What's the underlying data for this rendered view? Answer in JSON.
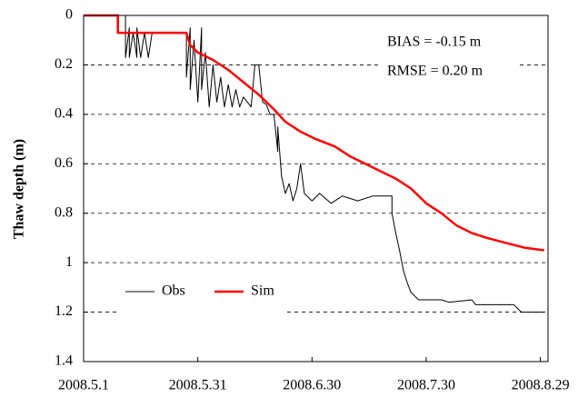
{
  "chart_data": {
    "type": "line",
    "y_label": "Thaw depth (m)",
    "y_inverted": true,
    "grid": true,
    "legend": "lower left",
    "annotations": [
      "BIAS = -0.15 m",
      "RMSE = 0.20 m"
    ],
    "xlim": [
      "2008-05-01",
      "2008-08-31"
    ],
    "xticks": [
      {
        "value": "2008-05-01",
        "label": "2008.5.1"
      },
      {
        "value": "2008-05-31",
        "label": "2008.5.31"
      },
      {
        "value": "2008-06-30",
        "label": "2008.6.30"
      },
      {
        "value": "2008-07-30",
        "label": "2008.7.30"
      },
      {
        "value": "2008-08-29",
        "label": "2008.8.29"
      }
    ],
    "ylim": [
      0,
      1.4
    ],
    "yticks": [
      0,
      0.2,
      0.4,
      0.6,
      0.8,
      1,
      1.2,
      1.4
    ],
    "series": [
      {
        "name": "Obs",
        "color": "#000000",
        "x": [
          "2008-05-01",
          "2008-05-12",
          "2008-05-12",
          "2008-05-13",
          "2008-05-13",
          "2008-05-14",
          "2008-05-15",
          "2008-05-15",
          "2008-05-16",
          "2008-05-17",
          "2008-05-18",
          "2008-05-19",
          "2008-05-28",
          "2008-05-28",
          "2008-05-29",
          "2008-05-29",
          "2008-05-30",
          "2008-05-31",
          "2008-06-01",
          "2008-06-01",
          "2008-06-02",
          "2008-06-03",
          "2008-06-04",
          "2008-06-05",
          "2008-06-06",
          "2008-06-07",
          "2008-06-08",
          "2008-06-09",
          "2008-06-10",
          "2008-06-11",
          "2008-06-12",
          "2008-06-14",
          "2008-06-15",
          "2008-06-16",
          "2008-06-17",
          "2008-06-18",
          "2008-06-19",
          "2008-06-20",
          "2008-06-21",
          "2008-06-21",
          "2008-06-22",
          "2008-06-23",
          "2008-06-24",
          "2008-06-25",
          "2008-06-26",
          "2008-06-27",
          "2008-06-28",
          "2008-06-30",
          "2008-07-02",
          "2008-07-05",
          "2008-07-08",
          "2008-07-12",
          "2008-07-16",
          "2008-07-21",
          "2008-07-21",
          "2008-07-22",
          "2008-07-23",
          "2008-07-24",
          "2008-07-25",
          "2008-07-26",
          "2008-07-28",
          "2008-08-03",
          "2008-08-05",
          "2008-08-11",
          "2008-08-12",
          "2008-08-22",
          "2008-08-24",
          "2008-08-30"
        ],
        "values": [
          0,
          0,
          0.17,
          0.05,
          0.17,
          0.07,
          0.17,
          0.05,
          0.17,
          0.07,
          0.17,
          0.07,
          0.07,
          0.25,
          0.05,
          0.3,
          0.1,
          0.35,
          0.05,
          0.3,
          0.15,
          0.37,
          0.2,
          0.35,
          0.25,
          0.37,
          0.28,
          0.37,
          0.3,
          0.37,
          0.33,
          0.37,
          0.2,
          0.2,
          0.35,
          0.36,
          0.4,
          0.4,
          0.55,
          0.45,
          0.65,
          0.72,
          0.68,
          0.75,
          0.7,
          0.6,
          0.72,
          0.75,
          0.72,
          0.76,
          0.73,
          0.75,
          0.73,
          0.73,
          0.8,
          0.88,
          0.95,
          1.03,
          1.08,
          1.12,
          1.15,
          1.15,
          1.16,
          1.15,
          1.17,
          1.17,
          1.2,
          1.2
        ]
      },
      {
        "name": "Sim",
        "color": "#ff0000",
        "x": [
          "2008-05-01",
          "2008-05-10",
          "2008-05-10",
          "2008-05-28",
          "2008-05-29",
          "2008-05-31",
          "2008-06-04",
          "2008-06-08",
          "2008-06-12",
          "2008-06-16",
          "2008-06-20",
          "2008-06-23",
          "2008-06-27",
          "2008-07-01",
          "2008-07-06",
          "2008-07-10",
          "2008-07-14",
          "2008-07-18",
          "2008-07-22",
          "2008-07-26",
          "2008-07-30",
          "2008-08-03",
          "2008-08-07",
          "2008-08-11",
          "2008-08-15",
          "2008-08-20",
          "2008-08-25",
          "2008-08-30"
        ],
        "values": [
          0,
          0,
          0.07,
          0.07,
          0.12,
          0.15,
          0.18,
          0.22,
          0.27,
          0.32,
          0.38,
          0.43,
          0.47,
          0.5,
          0.53,
          0.57,
          0.6,
          0.63,
          0.66,
          0.7,
          0.76,
          0.8,
          0.85,
          0.88,
          0.9,
          0.92,
          0.94,
          0.95
        ]
      }
    ]
  }
}
